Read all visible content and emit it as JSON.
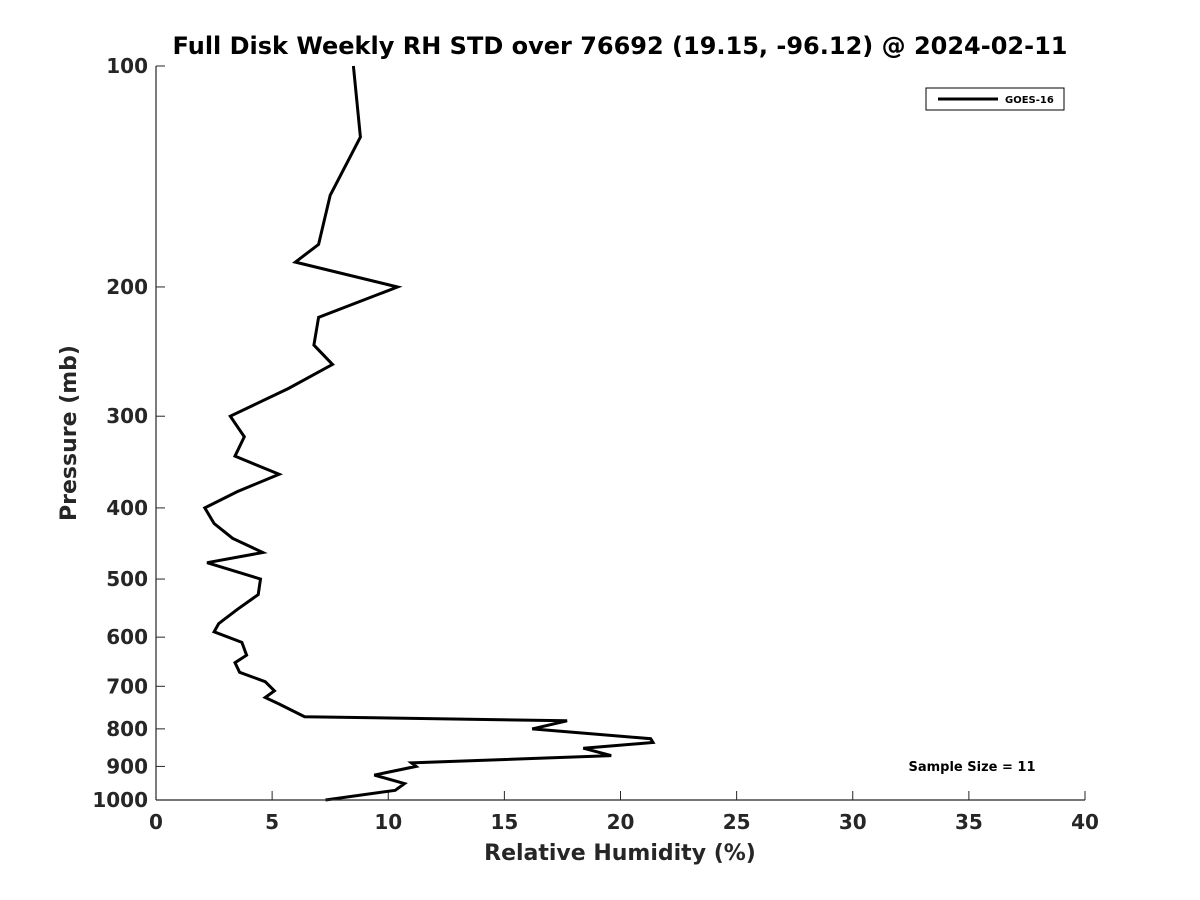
{
  "chart_data": {
    "type": "line",
    "title": "Full Disk Weekly RH STD over 76692 (19.15, -96.12) @ 2024-02-11",
    "xlabel": "Relative Humidity (%)",
    "ylabel": "Pressure (mb)",
    "xlim": [
      0,
      40
    ],
    "ylim": [
      100,
      1000
    ],
    "yscale": "log",
    "yreversed": true,
    "xticks": [
      0,
      5,
      10,
      15,
      20,
      25,
      30,
      35,
      40
    ],
    "yticks": [
      100,
      200,
      300,
      400,
      500,
      600,
      700,
      800,
      900,
      1000
    ],
    "grid": false,
    "legend_position": "top-right",
    "annotation": "Sample Size = 11",
    "series": [
      {
        "name": "GOES-16",
        "color": "#000000",
        "points": [
          [
            8.5,
            100
          ],
          [
            8.8,
            125
          ],
          [
            7.5,
            150
          ],
          [
            7.0,
            175
          ],
          [
            6.0,
            185
          ],
          [
            10.4,
            200
          ],
          [
            7.0,
            220
          ],
          [
            6.8,
            240
          ],
          [
            7.6,
            255
          ],
          [
            5.7,
            275
          ],
          [
            3.2,
            300
          ],
          [
            3.8,
            320
          ],
          [
            3.4,
            340
          ],
          [
            5.3,
            360
          ],
          [
            3.5,
            380
          ],
          [
            2.1,
            400
          ],
          [
            2.5,
            420
          ],
          [
            3.3,
            440
          ],
          [
            4.6,
            460
          ],
          [
            2.2,
            475
          ],
          [
            4.5,
            500
          ],
          [
            4.4,
            525
          ],
          [
            3.5,
            550
          ],
          [
            2.7,
            575
          ],
          [
            2.5,
            590
          ],
          [
            3.7,
            610
          ],
          [
            3.9,
            635
          ],
          [
            3.4,
            650
          ],
          [
            3.6,
            670
          ],
          [
            4.7,
            690
          ],
          [
            5.1,
            710
          ],
          [
            4.7,
            725
          ],
          [
            5.3,
            740
          ],
          [
            6.4,
            770
          ],
          [
            17.7,
            780
          ],
          [
            16.2,
            800
          ],
          [
            21.3,
            825
          ],
          [
            21.4,
            835
          ],
          [
            18.4,
            850
          ],
          [
            19.6,
            870
          ],
          [
            11.0,
            890
          ],
          [
            11.2,
            900
          ],
          [
            9.4,
            925
          ],
          [
            10.7,
            950
          ],
          [
            10.3,
            970
          ],
          [
            7.3,
            1000
          ]
        ]
      }
    ]
  }
}
